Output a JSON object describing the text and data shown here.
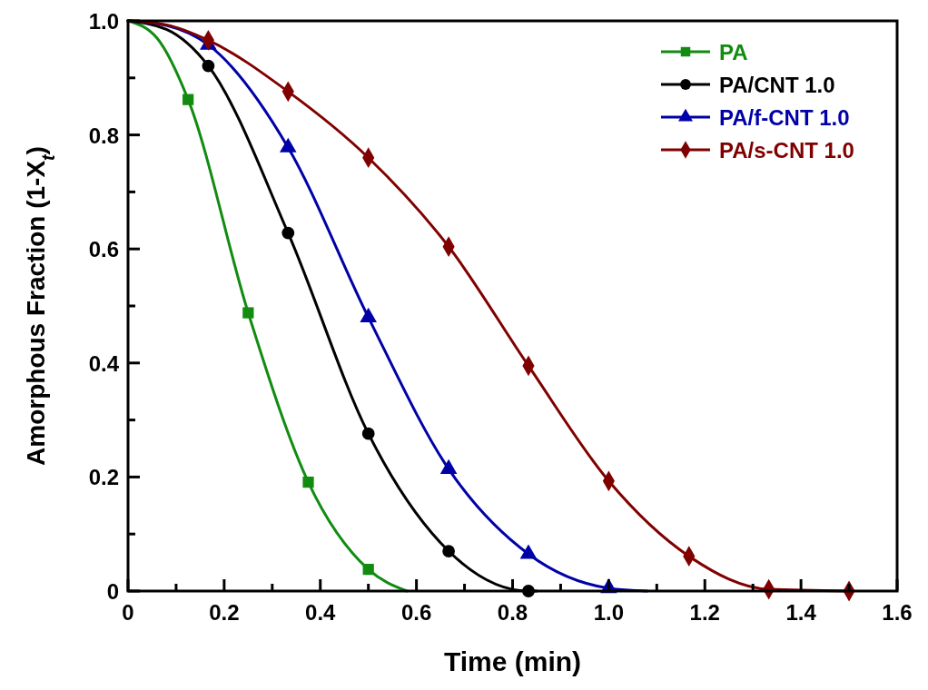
{
  "chart_data": {
    "type": "line",
    "xlabel": "Time (min)",
    "ylabel": "Amorphous Fraction (1-X$_{t}$)",
    "xlim": [
      0,
      1.6
    ],
    "ylim": [
      0,
      1
    ],
    "xticks": [
      0,
      {
        "value": 0.1,
        "label": null
      },
      0.2,
      {
        "value": 0.3,
        "label": null
      },
      0.4,
      {
        "value": 0.5,
        "label": null
      },
      0.6,
      {
        "value": 0.7,
        "label": null
      },
      0.8,
      {
        "value": 0.9,
        "label": null
      },
      {
        "value": 1,
        "label": "1.0"
      },
      {
        "value": 1.1,
        "label": null
      },
      1.2,
      {
        "value": 1.3,
        "label": null
      },
      1.4,
      {
        "value": 1.5,
        "label": null
      },
      1.6
    ],
    "yticks": [
      0,
      {
        "value": 0.1,
        "label": null
      },
      0.2,
      {
        "value": 0.3,
        "label": null
      },
      0.4,
      {
        "value": 0.5,
        "label": null
      },
      0.6,
      {
        "value": 0.7,
        "label": null
      },
      0.8,
      {
        "value": 0.9,
        "label": null
      },
      {
        "value": 1,
        "label": "1.0"
      }
    ],
    "grid": false,
    "legend": "top right",
    "line_style": "solid",
    "series": [
      {
        "name": "PA",
        "type": "line",
        "color": "#118c11",
        "x": [
          0,
          0.06,
          0.125,
          0.25,
          0.375,
          0.5,
          0.58
        ],
        "values": [
          1,
          0.97,
          0.862,
          0.488,
          0.191,
          0.038,
          0
        ]
      },
      {
        "type": "scatter",
        "marker": "square",
        "color": "#118c11",
        "x": [
          0.125,
          0.25,
          0.375,
          0.5
        ],
        "values": [
          0.862,
          0.488,
          0.191,
          0.038
        ]
      },
      {
        "name": "PA/CNT 1.0",
        "type": "line",
        "color": "#000000",
        "x": [
          0,
          0.08,
          0.167,
          0.333,
          0.5,
          0.667,
          0.833,
          0.85
        ],
        "values": [
          1,
          0.985,
          0.921,
          0.628,
          0.276,
          0.07,
          0,
          0
        ]
      },
      {
        "type": "scatter",
        "marker": "circle",
        "color": "#000000",
        "x": [
          0.167,
          0.333,
          0.5,
          0.667,
          0.833
        ],
        "values": [
          0.921,
          0.628,
          0.276,
          0.07,
          0
        ]
      },
      {
        "name": "PA/f-CNT 1.0",
        "type": "line",
        "color": "#0000a8",
        "x": [
          0,
          0.08,
          0.167,
          0.333,
          0.5,
          0.667,
          0.833,
          1,
          1.08
        ],
        "values": [
          1,
          0.992,
          0.958,
          0.778,
          0.48,
          0.214,
          0.065,
          0.005,
          0
        ]
      },
      {
        "type": "scatter",
        "marker": "triangle",
        "color": "#0000a8",
        "x": [
          0.167,
          0.333,
          0.5,
          0.667,
          0.833,
          1
        ],
        "values": [
          0.958,
          0.778,
          0.48,
          0.214,
          0.065,
          0.005
        ]
      },
      {
        "name": "PA/s-CNT 1.0",
        "type": "line",
        "color": "#800000",
        "x": [
          0,
          0.08,
          0.167,
          0.333,
          0.5,
          0.667,
          0.833,
          1,
          1.167,
          1.333,
          1.5
        ],
        "values": [
          1,
          0.993,
          0.966,
          0.876,
          0.76,
          0.604,
          0.395,
          0.193,
          0.061,
          0.003,
          0
        ]
      },
      {
        "type": "scatter",
        "marker": "diamond",
        "color": "#800000",
        "x": [
          0.167,
          0.333,
          0.5,
          0.667,
          0.833,
          1,
          1.167,
          1.333,
          1.5
        ],
        "values": [
          0.966,
          0.876,
          0.76,
          0.604,
          0.395,
          0.193,
          0.061,
          0.003,
          0
        ]
      }
    ]
  }
}
